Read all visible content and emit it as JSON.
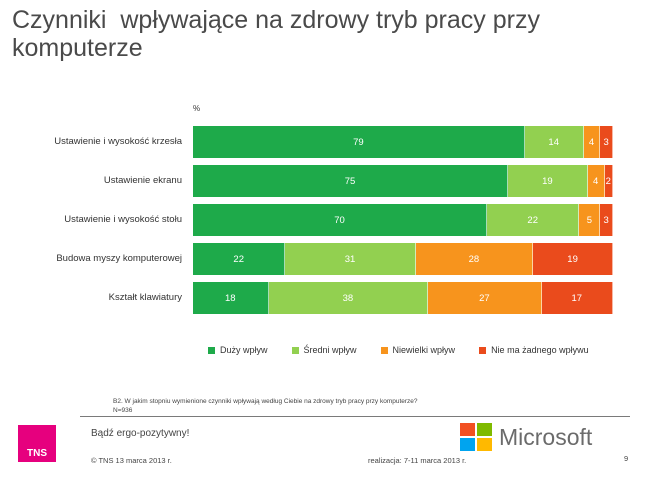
{
  "title": "Czynniki  wpływające na zdrowy tryb pracy przy komputerze",
  "unit_label": "%",
  "chart_data": {
    "type": "bar",
    "orientation": "horizontal",
    "stacked": true,
    "categories": [
      "Ustawienie i wysokość krzesła",
      "Ustawienie ekranu",
      "Ustawienie i wysokość stołu",
      "Budowa myszy komputerowej",
      "Kształt klawiatury"
    ],
    "series": [
      {
        "name": "Duży wpływ",
        "color": "#1eaa4a",
        "values": [
          79,
          75,
          70,
          22,
          18
        ]
      },
      {
        "name": "Średni wpływ",
        "color": "#92d050",
        "values": [
          14,
          19,
          22,
          31,
          38
        ]
      },
      {
        "name": "Niewielki wpływ",
        "color": "#f7941d",
        "values": [
          4,
          4,
          5,
          28,
          27
        ]
      },
      {
        "name": "Nie ma żadnego wpływu",
        "color": "#ea4b1c",
        "values": [
          3,
          2,
          3,
          19,
          17
        ]
      }
    ],
    "xlim": [
      0,
      100
    ],
    "legend_position": "bottom"
  },
  "footnote": {
    "line1": "B2. W jakim stopniu wymienione czynniki  wpływają według Ciebie na zdrowy tryb pracy przy komputerze?",
    "line2": "N=936"
  },
  "footer": {
    "tns_logo_text": "TNS",
    "slogan": "Bądź ergo-pozytywny!",
    "copyright": "© TNS   13 marca 2013 r.",
    "realization": "realizacja: 7-11 marca 2013 r.",
    "page_number": "9",
    "microsoft_text": "Microsoft",
    "microsoft_colors": [
      "#f25022",
      "#7fba00",
      "#00a4ef",
      "#ffb900"
    ]
  }
}
